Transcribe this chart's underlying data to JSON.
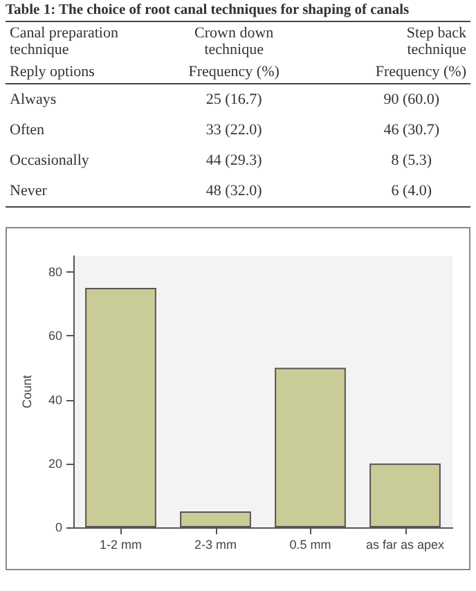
{
  "chart_data": [
    {
      "type": "other",
      "title": "Table 1: The choice of root canal techniques for shaping of canals",
      "annotations": [
        "Canal preparation technique",
        "Reply options",
        "Frequency (%)",
        "Frequency (%)"
      ],
      "categories": [
        "Always",
        "Often",
        "Occasionally",
        "Never"
      ],
      "series": [
        {
          "name": "Crown down technique",
          "values": [
            25,
            33,
            44,
            48
          ],
          "value_labels": [
            "25 (16.7)",
            "33 (22.0)",
            "44 (29.3)",
            "48 (32.0)"
          ]
        },
        {
          "name": "Step back technique",
          "values": [
            90,
            46,
            8,
            6
          ],
          "value_labels": [
            "90 (60.0)",
            "46 (30.7)",
            "8 (5.3)",
            "6 (4.0)"
          ]
        }
      ]
    },
    {
      "type": "bar",
      "categories": [
        "1-2 mm",
        "2-3 mm",
        "0.5 mm",
        "as far as apex"
      ],
      "values": [
        75,
        5,
        50,
        20
      ],
      "color": "#c9cc96",
      "ylabel": "Count",
      "ylim": [
        0,
        85
      ],
      "yticks": [
        0,
        20,
        40,
        60,
        80
      ],
      "grid": false,
      "legend": false
    }
  ]
}
